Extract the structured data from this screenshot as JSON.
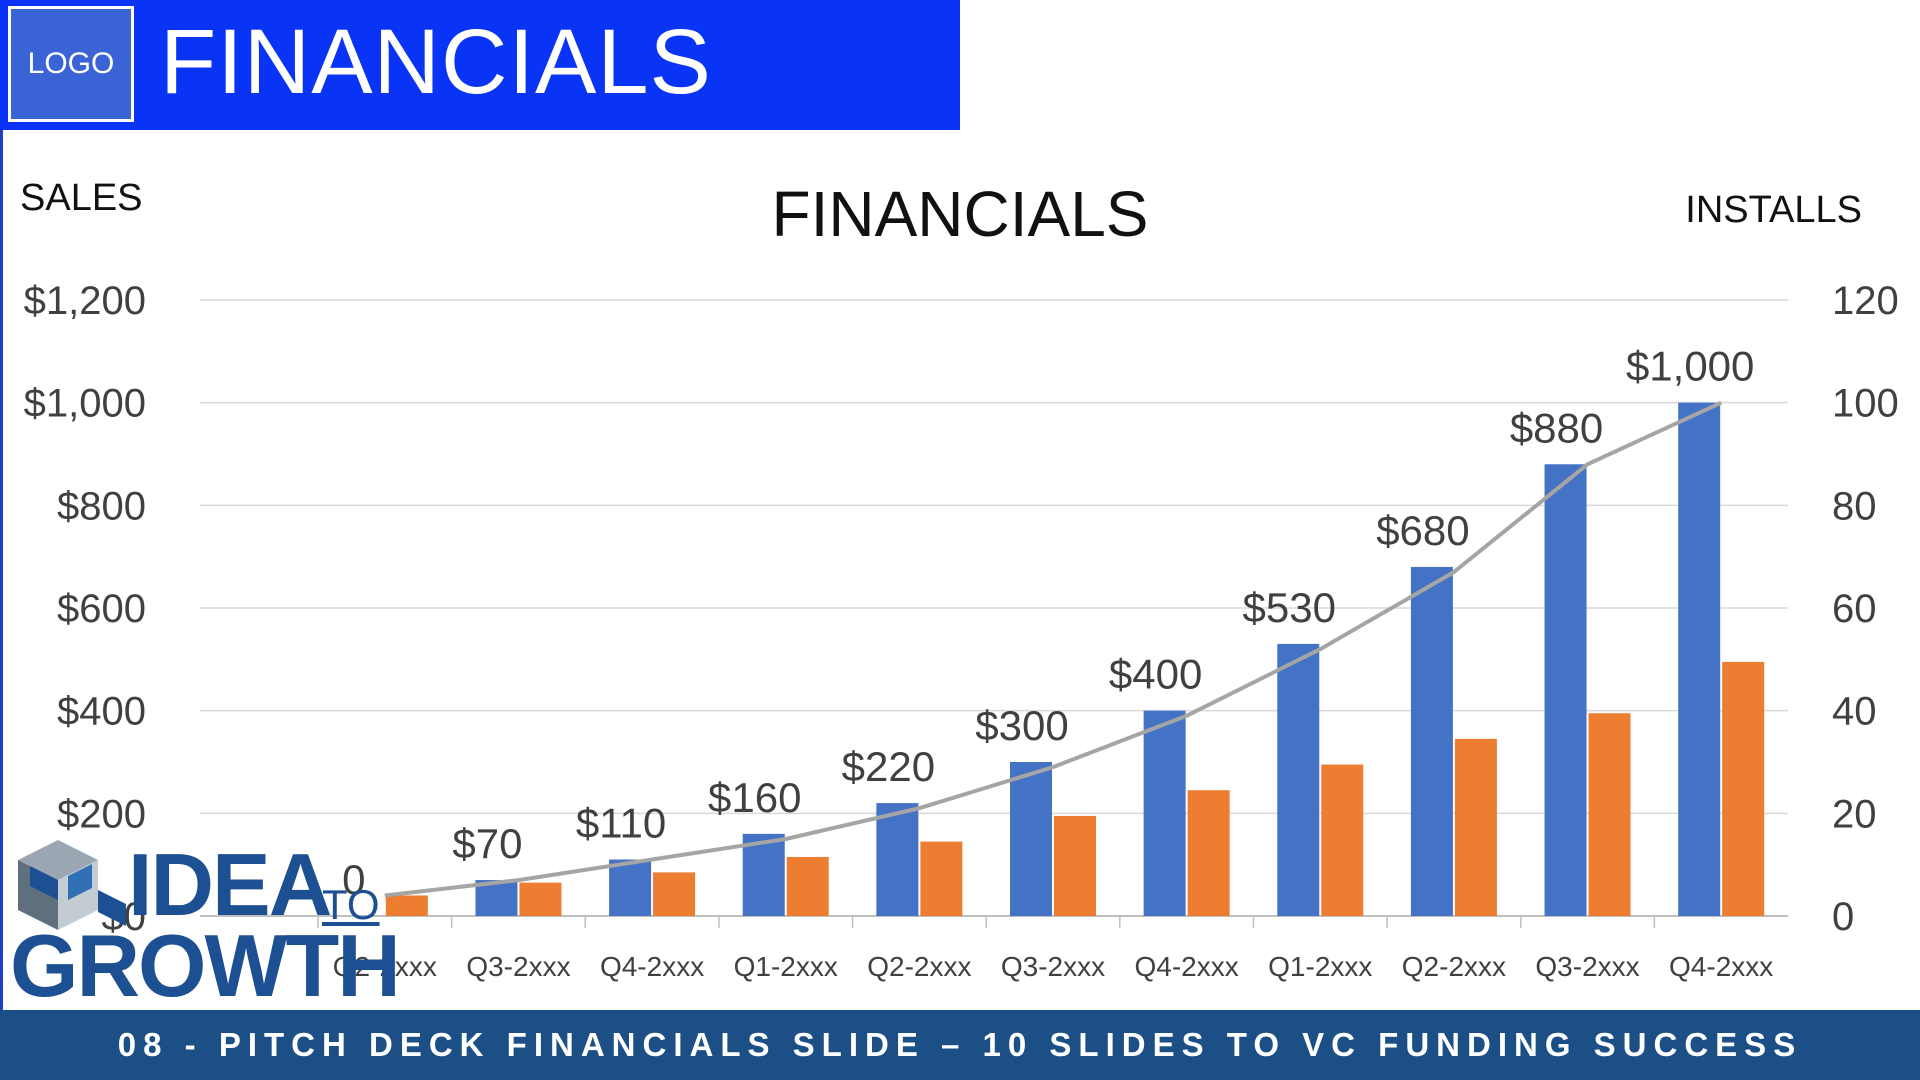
{
  "header": {
    "logo_label": "LOGO",
    "title": "FINANCIALS"
  },
  "chart_data": {
    "type": "bar",
    "title": "FINANCIALS",
    "ylabel": "SALES",
    "y2label": "INSTALLS",
    "ylim": [
      0,
      1200
    ],
    "y2lim": [
      0,
      120
    ],
    "yticks": [
      "$0",
      "$200",
      "$400",
      "$600",
      "$800",
      "$1,000",
      "$1,200"
    ],
    "y2ticks": [
      "0",
      "20",
      "40",
      "60",
      "80",
      "100",
      "120"
    ],
    "categories": [
      "Q2-2xxx",
      "Q3-2xxx",
      "Q4-2xxx",
      "Q1-2xxx",
      "Q2-2xxx",
      "Q3-2xxx",
      "Q4-2xxx",
      "Q1-2xxx",
      "Q2-2xxx",
      "Q3-2xxx",
      "Q4-2xxx"
    ],
    "series": [
      {
        "type": "bar",
        "axis": "left",
        "color": "#4472c4",
        "values": [
          0,
          70,
          110,
          160,
          220,
          300,
          400,
          530,
          680,
          880,
          1000
        ]
      },
      {
        "type": "bar",
        "axis": "left",
        "color": "#ed7d31",
        "values": [
          40,
          65,
          85,
          115,
          145,
          195,
          245,
          295,
          345,
          395,
          495
        ]
      },
      {
        "type": "line",
        "axis": "right",
        "color": "#a5a5a5",
        "values": [
          4,
          7,
          11,
          15,
          21,
          29,
          39,
          52,
          67,
          88,
          100
        ]
      }
    ],
    "data_labels": [
      "0",
      "$70",
      "$110",
      "$160",
      "$220",
      "$300",
      "$400",
      "$530",
      "$680",
      "$880",
      "$1,000"
    ],
    "grid": true
  },
  "brand": {
    "word1": "IDEA",
    "word2": "TO",
    "word3": "GROWTH"
  },
  "footer": {
    "text": "08 - PITCH DECK FINANCIALS SLIDE – 10 SLIDES TO VC FUNDING SUCCESS"
  }
}
